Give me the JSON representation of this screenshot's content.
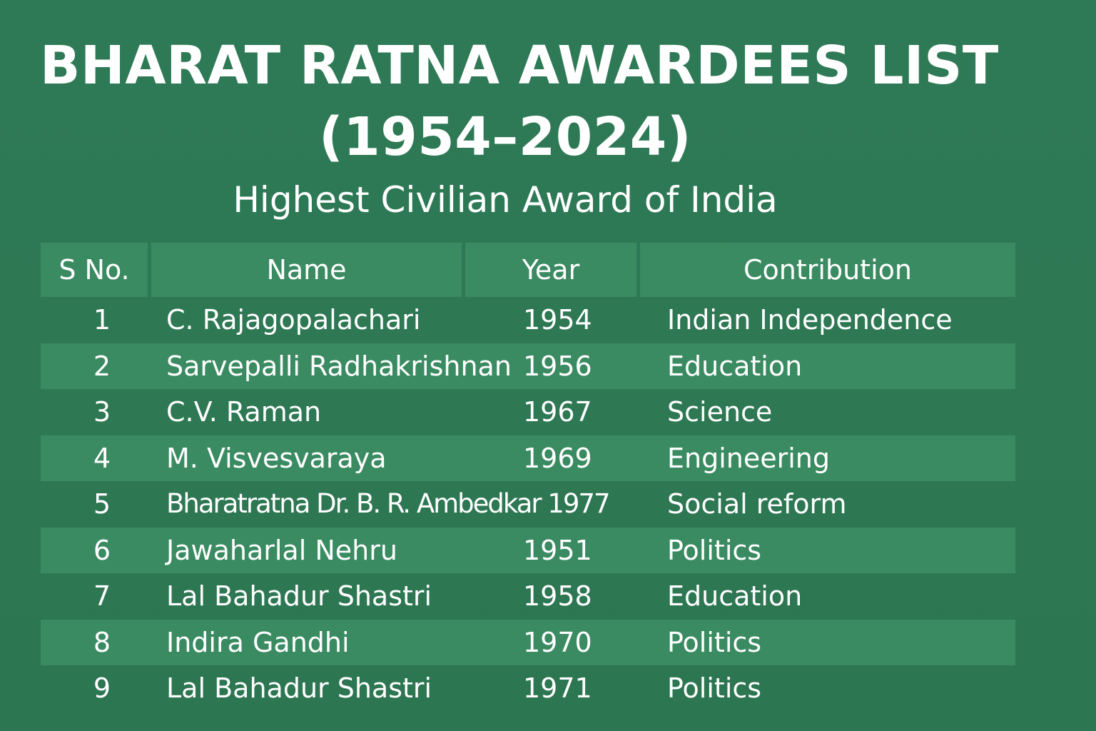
{
  "title": {
    "line1": "BHARAT RATNA AWARDEES LIST",
    "line2": "(1954–2024)"
  },
  "subtitle": "Highest Civilian Award of India",
  "table": {
    "headers": {
      "sno": "S No.",
      "name": "Name",
      "year": "Year",
      "contribution": "Contribution"
    },
    "rows": [
      {
        "sno": "1",
        "name": "C. Rajagopalachari",
        "year": "1954",
        "contribution": "Indian Independence"
      },
      {
        "sno": "2",
        "name": "Sarvepalli Radhakrishnan",
        "year": "1956",
        "contribution": "Education"
      },
      {
        "sno": "3",
        "name": "C.V. Raman",
        "year": "1967",
        "contribution": "Science"
      },
      {
        "sno": "4",
        "name": "M. Visvesvaraya",
        "year": "1969",
        "contribution": "Engineering"
      },
      {
        "sno": "5",
        "name": "Bharatratna Dr. B. R. Ambedkar 1977",
        "year": "",
        "contribution": "Social reform"
      },
      {
        "sno": "6",
        "name": "Jawaharlal Nehru",
        "year": "1951",
        "contribution": "Politics"
      },
      {
        "sno": "7",
        "name": "Lal Bahadur Shastri",
        "year": "1958",
        "contribution": "Education"
      },
      {
        "sno": "8",
        "name": "Indira Gandhi",
        "year": "1970",
        "contribution": "Politics"
      },
      {
        "sno": "9",
        "name": "Lal Bahadur Shastri",
        "year": "1971",
        "contribution": "Politics"
      }
    ]
  },
  "colors": {
    "background": "#2f7a56",
    "band": "#3a8b62",
    "text": "#ffffff"
  }
}
